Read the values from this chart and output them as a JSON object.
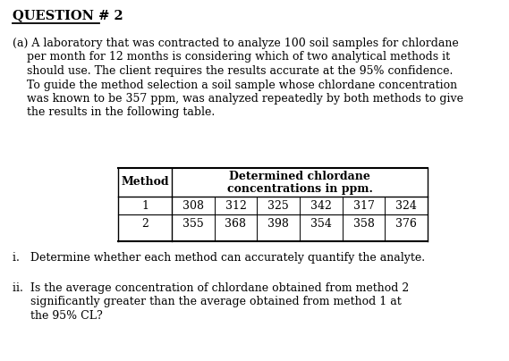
{
  "title": "QUESTION # 2",
  "para_line1": "(a) A laboratory that was contracted to analyze 100 soil samples for chlordane",
  "para_line2": "    per month for 12 months is considering which of two analytical methods it",
  "para_line3": "    should use. The client requires the results accurate at the 95% confidence.",
  "para_line4": "    To guide the method selection a soil sample whose chlordane concentration",
  "para_line5": "    was known to be 357 ppm, was analyzed repeatedly by both methods to give",
  "para_line6": "    the results in the following table.",
  "table_header_col1": "Method",
  "table_header_col2a": "Determined chlordane",
  "table_header_col2b": "concentrations in ppm.",
  "table_row1_method": "1",
  "table_row2_method": "2",
  "row1_values": [
    308,
    312,
    325,
    342,
    317,
    324
  ],
  "row2_values": [
    355,
    368,
    398,
    354,
    358,
    376
  ],
  "point_i": "i.   Determine whether each method can accurately quantify the analyte.",
  "point_ii_1": "ii.  Is the average concentration of chlordane obtained from method 2",
  "point_ii_2": "     significantly greater than the average obtained from method 1 at",
  "point_ii_3": "     the 95% CL?",
  "bg_color": "#ffffff",
  "text_color": "#000000",
  "font_size_title": 10.5,
  "font_size_body": 9.0,
  "font_size_table": 9.0
}
